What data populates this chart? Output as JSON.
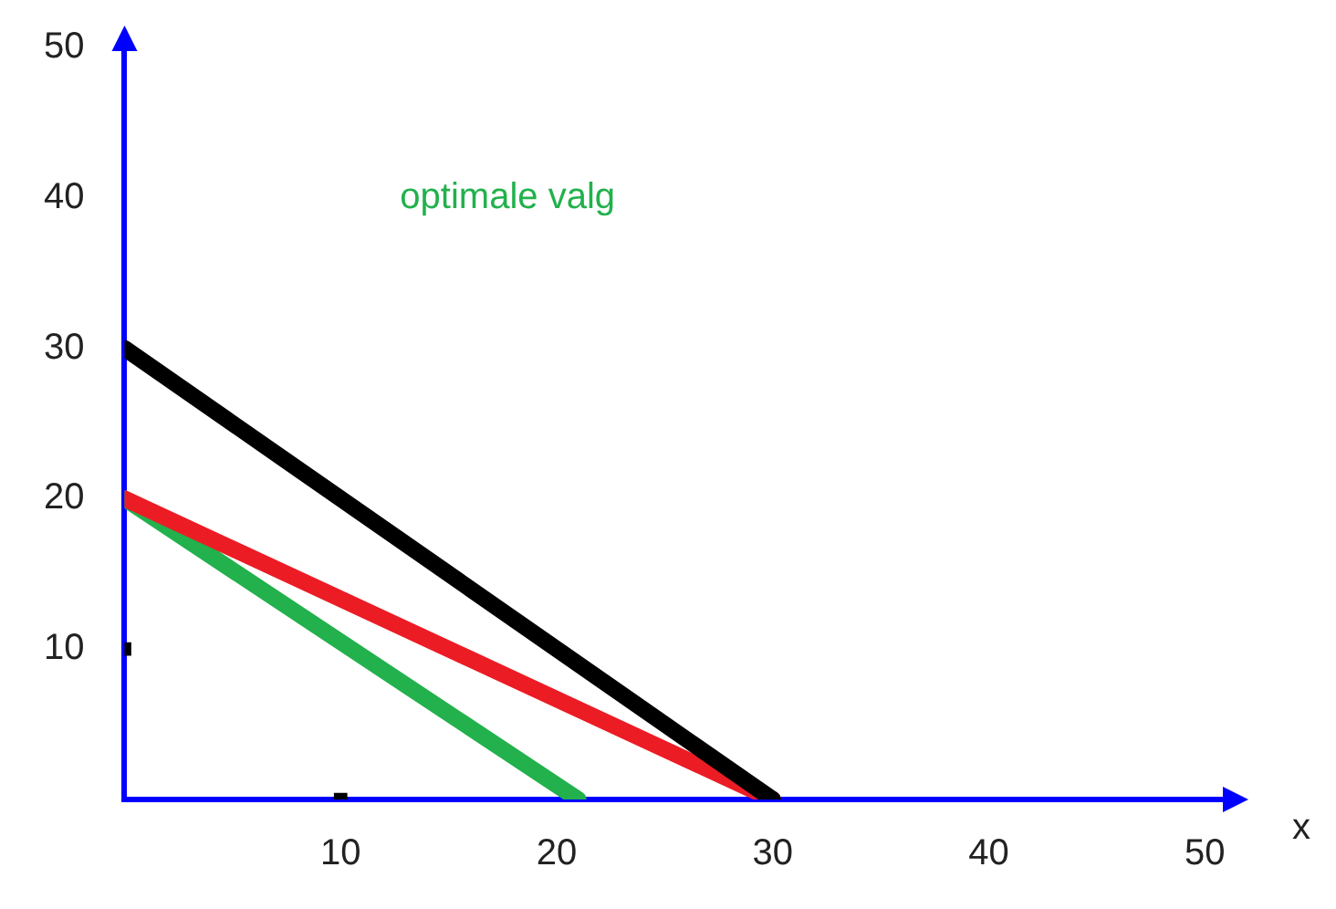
{
  "chart_data": {
    "type": "line",
    "xlabel": "x",
    "annotations": [
      "optimale valg"
    ],
    "xlim": [
      0,
      51
    ],
    "ylim": [
      0,
      50
    ],
    "xticks": [
      10,
      20,
      30,
      40,
      50
    ],
    "yticks": [
      10,
      20,
      30,
      40,
      50
    ],
    "grid": false,
    "legend": false,
    "marker": "none",
    "line_style": "solid",
    "series": [
      {
        "color": "#000000",
        "x": [
          0,
          30
        ],
        "values": [
          30,
          0
        ]
      },
      {
        "color": "#ec1c24",
        "x": [
          0,
          30
        ],
        "values": [
          20,
          0
        ]
      },
      {
        "color": "#22b14c",
        "x": [
          0,
          21
        ],
        "values": [
          20,
          0
        ]
      },
      {
        "type": "scatter",
        "marker": "square",
        "color": "#000000",
        "x": [
          10,
          0
        ],
        "values": [
          0,
          10
        ]
      }
    ]
  }
}
